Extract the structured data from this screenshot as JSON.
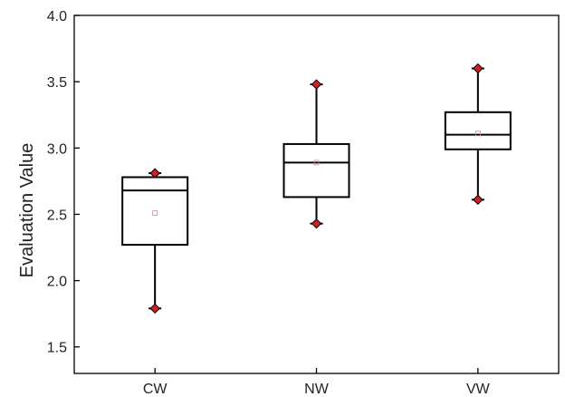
{
  "chart_data": {
    "type": "box",
    "title": "",
    "xlabel": "",
    "ylabel": "Evaluation Value",
    "ylim": [
      1.3,
      4.0
    ],
    "yticks": [
      1.5,
      2.0,
      2.5,
      3.0,
      3.5,
      4.0
    ],
    "ytick_labels": [
      "1.5",
      "2.0",
      "2.5",
      "3.0",
      "3.5",
      "4.0"
    ],
    "categories": [
      "CW",
      "NW",
      "VW"
    ],
    "grid": false,
    "boxes": [
      {
        "category": "CW",
        "min": 1.79,
        "q1": 2.27,
        "median": 2.68,
        "q3": 2.78,
        "max": 2.81,
        "mean": 2.51
      },
      {
        "category": "NW",
        "min": 2.43,
        "q1": 2.63,
        "median": 2.89,
        "q3": 3.03,
        "max": 3.48,
        "mean": 2.89
      },
      {
        "category": "VW",
        "min": 2.61,
        "q1": 2.99,
        "median": 3.1,
        "q3": 3.27,
        "max": 3.6,
        "mean": 3.11
      }
    ],
    "colors": {
      "box": "#000000",
      "extreme_marker": "#d21f1f",
      "mean_marker": "#d98a8a"
    }
  }
}
